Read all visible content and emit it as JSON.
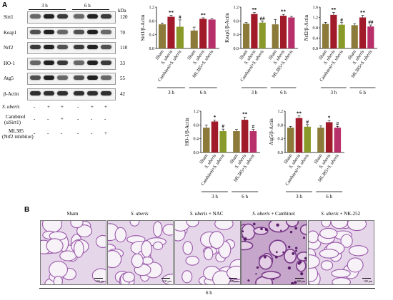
{
  "panel_a": {
    "letter": "A",
    "blot": {
      "time_groups": [
        "3 h",
        "6 h"
      ],
      "kda_label": "kDa",
      "bands": [
        {
          "name": "Sirt1",
          "kda": "120"
        },
        {
          "name": "Keap1",
          "kda": "70"
        },
        {
          "name": "Nrf2",
          "kda": "110"
        },
        {
          "name": "HO-1",
          "kda": "33"
        },
        {
          "name": "Atg5",
          "kda": "55"
        },
        {
          "name": "β-Actin",
          "kda": "42"
        }
      ],
      "treatments": [
        {
          "label": "S. uberis",
          "signs": [
            "-",
            "+",
            "+",
            "-",
            "+",
            "+"
          ]
        },
        {
          "label": "Cambinol",
          "sublabel": "(siSirt1)",
          "signs": [
            "-",
            "-",
            "+",
            "-",
            "-",
            "-"
          ]
        },
        {
          "label": "ML385",
          "sublabel": "(Nrf2 inhibitor)",
          "signs": [
            "-",
            "-",
            "-",
            "-",
            "-",
            "+"
          ]
        }
      ]
    }
  },
  "panel_b": {
    "letter": "B",
    "titles": [
      "Sham",
      "S. uberis",
      "S. uberis + NAC",
      "S. uberis + Cambinol",
      "S. uberis + NK-252"
    ],
    "scale_label": "100 μm",
    "time_label": "6 h"
  },
  "colors": {
    "sham": "#8b7a3a",
    "uberis": "#a01a2a",
    "inhib3": "#8a9a2a",
    "inhib6": "#b8306a"
  },
  "chart_data": [
    {
      "type": "bar",
      "ylabel": "Sirt1/β-Actin",
      "ylim": [
        0,
        1.2
      ],
      "yticks": [
        "0.0",
        "0.4",
        "0.8",
        "1.2"
      ],
      "categories": [
        "Sham",
        "S. uberis",
        "Cambinol+S. uberis",
        "Sham",
        "S. uberis",
        "ML385+S. uberis"
      ],
      "groups": [
        "3 h",
        "6 h"
      ],
      "values": [
        0.7,
        0.92,
        0.63,
        0.52,
        0.86,
        0.84
      ],
      "errors": [
        0.04,
        0.04,
        0.2,
        0.1,
        0.03,
        0.03
      ],
      "sig": [
        "",
        "**",
        "#",
        "",
        "**",
        ""
      ]
    },
    {
      "type": "bar",
      "ylabel": "Keap1/β-Actin",
      "ylim": [
        0,
        1.2
      ],
      "yticks": [
        "0.0",
        "0.4",
        "0.8",
        "1.2"
      ],
      "categories": [
        "Sham",
        "S. uberis",
        "Cambinol+S. uberis",
        "Sham",
        "S. uberis",
        "ML385+S. uberis"
      ],
      "groups": [
        "3 h",
        "6 h"
      ],
      "values": [
        0.72,
        1.0,
        0.75,
        0.7,
        0.95,
        0.9
      ],
      "errors": [
        0.03,
        0.04,
        0.04,
        0.14,
        0.04,
        0.03
      ],
      "sig": [
        "",
        "**",
        "##",
        "",
        "**",
        ""
      ]
    },
    {
      "type": "bar",
      "ylabel": "Nrf2/β-Actin",
      "ylim": [
        0,
        1.6
      ],
      "yticks": [
        "0.0",
        "0.4",
        "0.8",
        "1.2",
        "1.6"
      ],
      "categories": [
        "Sham",
        "S. uberis",
        "Cambinol+S. uberis",
        "Sham",
        "S. uberis",
        "ML385+S. uberis"
      ],
      "groups": [
        "3 h",
        "6 h"
      ],
      "values": [
        0.95,
        1.3,
        0.92,
        0.9,
        1.2,
        0.85
      ],
      "errors": [
        0.06,
        0.1,
        0.08,
        0.06,
        0.08,
        0.06
      ],
      "sig": [
        "",
        "**",
        "#",
        "",
        "**",
        "##"
      ]
    },
    {
      "type": "bar",
      "ylabel": "HO-1/β-Actin",
      "ylim": [
        0,
        1.2
      ],
      "yticks": [
        "0.0",
        "0.4",
        "0.8",
        "1.2"
      ],
      "categories": [
        "Sham",
        "S. uberis",
        "Cambinol+S. uberis",
        "Sham",
        "S. uberis",
        "ML385+S. uberis"
      ],
      "groups": [
        "3 h",
        "6 h"
      ],
      "values": [
        0.72,
        0.9,
        0.62,
        0.62,
        0.95,
        0.62
      ],
      "errors": [
        0.08,
        0.04,
        0.06,
        0.05,
        0.08,
        0.05
      ],
      "sig": [
        "",
        "*",
        "#",
        "",
        "**",
        "#"
      ]
    },
    {
      "type": "bar",
      "ylabel": "Atg5/β-Actin",
      "ylim": [
        0,
        1.2
      ],
      "yticks": [
        "0.0",
        "0.4",
        "0.8",
        "1.2"
      ],
      "categories": [
        "Sham",
        "S. uberis",
        "Cambinol+S. uberis",
        "Sham",
        "S. uberis",
        "ML385+S. uberis"
      ],
      "groups": [
        "3 h",
        "6 h"
      ],
      "values": [
        0.72,
        1.0,
        0.75,
        0.72,
        0.88,
        0.72
      ],
      "errors": [
        0.04,
        0.06,
        0.06,
        0.05,
        0.05,
        0.04
      ],
      "sig": [
        "",
        "**",
        "#",
        "",
        "*",
        "#"
      ]
    }
  ]
}
